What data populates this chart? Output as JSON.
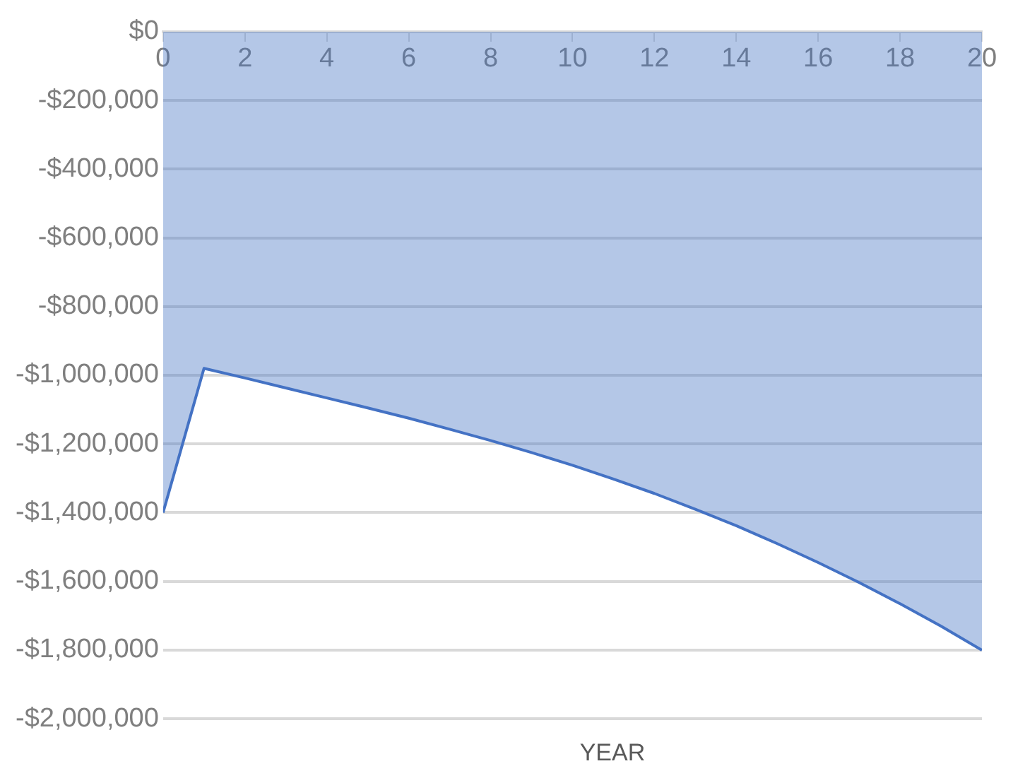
{
  "chart_data": {
    "type": "area",
    "xlabel": "YEAR",
    "x": [
      0,
      1,
      2,
      3,
      4,
      5,
      6,
      7,
      8,
      9,
      10,
      11,
      12,
      13,
      14,
      15,
      16,
      17,
      18,
      19,
      20
    ],
    "series": [
      {
        "color": "#4472c4",
        "values": [
          -1400000,
          -980000,
          -1008000,
          -1037000,
          -1066000,
          -1095000,
          -1125000,
          -1157000,
          -1190000,
          -1225000,
          -1262000,
          -1302000,
          -1344000,
          -1390000,
          -1438000,
          -1490000,
          -1545000,
          -1603000,
          -1665000,
          -1730000,
          -1800000
        ]
      }
    ],
    "xlim": [
      0,
      20
    ],
    "xticks": [
      0,
      2,
      4,
      6,
      8,
      10,
      12,
      14,
      16,
      18,
      20
    ],
    "ylim": [
      -2000000,
      0
    ],
    "yticks": [
      {
        "value": -2000000,
        "label": "-$2,000,000"
      },
      {
        "value": -1800000,
        "label": "-$1,800,000"
      },
      {
        "value": -1600000,
        "label": "-$1,600,000"
      },
      {
        "value": -1400000,
        "label": "-$1,400,000"
      },
      {
        "value": -1200000,
        "label": "-$1,200,000"
      },
      {
        "value": -1000000,
        "label": "-$1,000,000"
      },
      {
        "value": -800000,
        "label": "-$800,000"
      },
      {
        "value": -600000,
        "label": "-$600,000"
      },
      {
        "value": -400000,
        "label": "-$400,000"
      },
      {
        "value": -200000,
        "label": "-$200,000"
      },
      {
        "value": 0,
        "label": "$0"
      }
    ],
    "grid": "y",
    "legend": false
  }
}
